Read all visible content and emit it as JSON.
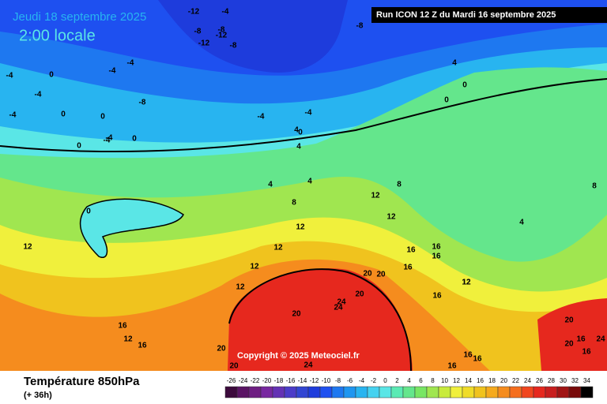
{
  "header": {
    "date": "Jeudi 18 septembre 2025",
    "time": "2:00 locale",
    "run": "Run ICON 12 Z du Mardi 16 septembre 2025"
  },
  "copyright": "Copyright © 2025 Meteociel.fr",
  "footer": {
    "title": "Température 850hPa",
    "lead": "(+ 36h)"
  },
  "legend": {
    "ticks": [
      -26,
      -24,
      -22,
      -20,
      -18,
      -16,
      -14,
      -12,
      -10,
      -8,
      -6,
      -4,
      -2,
      0,
      2,
      4,
      6,
      8,
      10,
      12,
      14,
      16,
      18,
      20,
      22,
      24,
      26,
      28,
      30,
      32,
      34
    ],
    "colors": [
      "#3c0a3c",
      "#5a1464",
      "#6e1e82",
      "#7828a0",
      "#6432b4",
      "#4b3cc8",
      "#3246d2",
      "#1e3cdc",
      "#1e50f0",
      "#1e78f0",
      "#1e96f0",
      "#28b4f0",
      "#46d2f0",
      "#5ae6e6",
      "#5aeab4",
      "#64e68c",
      "#78e664",
      "#a0e650",
      "#c8eb3c",
      "#f0f03c",
      "#f0dc28",
      "#f0c31e",
      "#f5aa1e",
      "#f58c1e",
      "#f56e1e",
      "#f0461e",
      "#e6281e",
      "#c81e1e",
      "#a01414",
      "#780a0a",
      "#000000"
    ]
  },
  "contour_labels": [
    -12,
    -4,
    -8,
    -8,
    -12,
    -12,
    -8,
    -8,
    -4,
    -4,
    -4,
    -4,
    -8,
    0,
    0,
    0,
    0,
    -4,
    0,
    -4,
    -4,
    -4,
    -4,
    4,
    0,
    0,
    4,
    4,
    4,
    4,
    4,
    0,
    0,
    8,
    8,
    8,
    12,
    12,
    12,
    12,
    12,
    12,
    12,
    16,
    16,
    16,
    12,
    16,
    20,
    20,
    20,
    24,
    20,
    24,
    20,
    20,
    24,
    16,
    16,
    16,
    12,
    16,
    20,
    16,
    20,
    16,
    24,
    12,
    16,
    16
  ]
}
